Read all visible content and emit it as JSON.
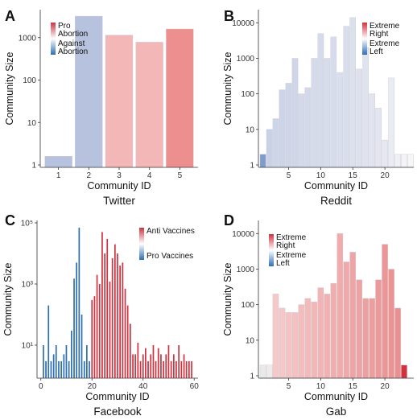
{
  "figure": {
    "colors": {
      "blue": "#2d6fb3",
      "red": "#d0323f",
      "light_blue": "#b7c3de",
      "light_red": "#f4b7b7",
      "mid_red": "#ee9c9c",
      "axis": "#333333",
      "text": "#111111"
    }
  },
  "chart_data": [
    {
      "panel": "A",
      "type": "bar",
      "subtitle": "Twitter",
      "xlabel": "Community ID",
      "ylabel": "Community Size",
      "yscale": "log10",
      "ylim": [
        1,
        4000
      ],
      "yticks": [
        1,
        10,
        100,
        1000
      ],
      "yticklabels": [
        "1",
        "10",
        "100",
        "1000"
      ],
      "xticks": [
        1,
        2,
        3,
        4,
        5
      ],
      "xticklabels": [
        "1",
        "2",
        "3",
        "4",
        "5"
      ],
      "legend": {
        "position": "top-left",
        "gradient": [
          "#d0323f",
          "#ffffff",
          "#2d6fb3"
        ],
        "top_label": "Pro\nAbortion",
        "bottom_label": "Against\nAbortion"
      },
      "bars": [
        {
          "x": 1,
          "value": 1.6,
          "color": "#b7c3de"
        },
        {
          "x": 2,
          "value": 3200,
          "color": "#b7c3de"
        },
        {
          "x": 3,
          "value": 1150,
          "color": "#f4b7b7"
        },
        {
          "x": 4,
          "value": 780,
          "color": "#f4b7b7"
        },
        {
          "x": 5,
          "value": 1600,
          "color": "#ee8f8f"
        }
      ]
    },
    {
      "panel": "B",
      "type": "bar",
      "subtitle": "Reddit",
      "xlabel": "Community ID",
      "ylabel": "Community Size",
      "yscale": "log10",
      "ylim": [
        1,
        20000
      ],
      "yticks": [
        1,
        10,
        100,
        1000,
        10000
      ],
      "yticklabels": [
        "1",
        "10",
        "100",
        "1000",
        "10000"
      ],
      "xticks": [
        5,
        10,
        15,
        20
      ],
      "xticklabels": [
        "5",
        "10",
        "15",
        "20"
      ],
      "xlim": [
        0.3,
        24.5
      ],
      "legend": {
        "position": "top-right",
        "gradient": [
          "#d0323f",
          "#ffffff",
          "#2d6fb3"
        ],
        "top_label": "Extreme\nRight",
        "bottom_label": "Extreme\nLeft"
      },
      "bars": [
        {
          "x": 1,
          "value": 2,
          "color": "#7f9ccb"
        },
        {
          "x": 2,
          "value": 10,
          "color": "#c8d1e6"
        },
        {
          "x": 3,
          "value": 20,
          "color": "#cdd5e8"
        },
        {
          "x": 4,
          "value": 130,
          "color": "#ccd4e7"
        },
        {
          "x": 5,
          "value": 200,
          "color": "#cdd5e8"
        },
        {
          "x": 6,
          "value": 1000,
          "color": "#cfd6e8"
        },
        {
          "x": 7,
          "value": 100,
          "color": "#d3d9ea"
        },
        {
          "x": 8,
          "value": 150,
          "color": "#d3d9ea"
        },
        {
          "x": 9,
          "value": 1000,
          "color": "#d5dbeb"
        },
        {
          "x": 10,
          "value": 5000,
          "color": "#d5dbeb"
        },
        {
          "x": 11,
          "value": 1000,
          "color": "#d7dcec"
        },
        {
          "x": 12,
          "value": 4000,
          "color": "#d7dcec"
        },
        {
          "x": 13,
          "value": 400,
          "color": "#d9deec"
        },
        {
          "x": 14,
          "value": 8000,
          "color": "#d9deec"
        },
        {
          "x": 15,
          "value": 14000,
          "color": "#dbe0ed"
        },
        {
          "x": 16,
          "value": 500,
          "color": "#dde1ee"
        },
        {
          "x": 17,
          "value": 2000,
          "color": "#dfe3ef"
        },
        {
          "x": 18,
          "value": 100,
          "color": "#e1e4ef"
        },
        {
          "x": 19,
          "value": 40,
          "color": "#e3e6f0"
        },
        {
          "x": 20,
          "value": 5,
          "color": "#e6e8f1"
        },
        {
          "x": 21,
          "value": 280,
          "color": "#eaecf3"
        },
        {
          "x": 22,
          "value": 2,
          "color": "#eff0f5"
        },
        {
          "x": 23,
          "value": 2,
          "color": "#f4f4f6"
        },
        {
          "x": 24,
          "value": 2,
          "color": "#f6f6f7"
        }
      ]
    },
    {
      "panel": "C",
      "type": "bar",
      "subtitle": "Facebook",
      "xlabel": "Community ID",
      "ylabel": "Community Size",
      "yscale": "log10",
      "ylim": [
        1,
        100000
      ],
      "yticks": [
        10,
        1000,
        100000
      ],
      "yticklabels": [
        "10¹",
        "10³",
        "10⁵"
      ],
      "xticks": [
        0,
        20,
        40,
        60
      ],
      "xticklabels": [
        "0",
        "20",
        "40",
        "60"
      ],
      "xlim": [
        -1.5,
        61.5
      ],
      "legend": {
        "position": "top-right",
        "gradient": [
          "#d0323f",
          "#ffffff",
          "#2d6fb3"
        ],
        "top_label": "Anti Vaccines",
        "bottom_label": "Pro Vaccines"
      },
      "series": [
        {
          "name": "Pro Vaccines",
          "color": "#2d6fb3",
          "x": [
            1,
            2,
            3,
            4,
            5,
            6,
            7,
            8,
            9,
            10,
            11,
            12,
            13,
            14,
            15,
            16,
            17,
            18,
            19
          ],
          "values": [
            10,
            3,
            200,
            3,
            5,
            10,
            3,
            3,
            5,
            10,
            3,
            30,
            1500,
            5000,
            70000,
            100,
            3,
            10,
            3
          ]
        },
        {
          "name": "Anti Vaccines",
          "color": "#d0323f",
          "x": [
            20,
            21,
            22,
            23,
            24,
            25,
            26,
            27,
            28,
            29,
            30,
            31,
            32,
            33,
            34,
            35,
            36,
            37,
            38,
            39,
            40,
            41,
            42,
            43,
            44,
            45,
            46,
            47,
            48,
            49,
            50,
            51,
            52,
            53,
            54,
            55,
            56,
            57,
            58,
            59
          ],
          "values": [
            300,
            400,
            2000,
            1000,
            50000,
            10000,
            30000,
            1200,
            7000,
            20000,
            10000,
            4000,
            5000,
            700,
            200,
            50,
            5,
            5,
            12,
            3,
            5,
            8,
            3,
            5,
            10,
            3,
            8,
            5,
            3,
            5,
            10,
            3,
            5,
            3,
            10,
            3,
            5,
            3,
            3,
            3
          ]
        }
      ]
    },
    {
      "panel": "D",
      "type": "bar",
      "subtitle": "Gab",
      "xlabel": "Community ID",
      "ylabel": "Community Size",
      "yscale": "log10",
      "ylim": [
        1,
        20000
      ],
      "yticks": [
        1,
        10,
        100,
        1000,
        10000
      ],
      "yticklabels": [
        "1",
        "10",
        "100",
        "1000",
        "10000"
      ],
      "xticks": [
        5,
        10,
        15,
        20
      ],
      "xticklabels": [
        "5",
        "10",
        "15",
        "20"
      ],
      "xlim": [
        0.3,
        24.5
      ],
      "legend": {
        "position": "top-left",
        "gradient": [
          "#d0323f",
          "#ffffff",
          "#2d6fb3"
        ],
        "top_label": "Extreme\nRight",
        "bottom_label": "Extreme\nLeft"
      },
      "bars": [
        {
          "x": 1,
          "value": 2,
          "color": "#e9e9ea"
        },
        {
          "x": 2,
          "value": 2,
          "color": "#f0e9ea"
        },
        {
          "x": 3,
          "value": 200,
          "color": "#f6c9c9"
        },
        {
          "x": 4,
          "value": 80,
          "color": "#f6c7c7"
        },
        {
          "x": 5,
          "value": 60,
          "color": "#f5c3c3"
        },
        {
          "x": 6,
          "value": 60,
          "color": "#f5c0c0"
        },
        {
          "x": 7,
          "value": 100,
          "color": "#f4bdbd"
        },
        {
          "x": 8,
          "value": 150,
          "color": "#f3baba"
        },
        {
          "x": 9,
          "value": 120,
          "color": "#f3b7b7"
        },
        {
          "x": 10,
          "value": 300,
          "color": "#f2b4b4"
        },
        {
          "x": 11,
          "value": 200,
          "color": "#f2b1b1"
        },
        {
          "x": 12,
          "value": 400,
          "color": "#f1aeae"
        },
        {
          "x": 13,
          "value": 10000,
          "color": "#f1abab"
        },
        {
          "x": 14,
          "value": 1600,
          "color": "#f0a8a8"
        },
        {
          "x": 15,
          "value": 3000,
          "color": "#efa5a5"
        },
        {
          "x": 16,
          "value": 500,
          "color": "#efa2a2"
        },
        {
          "x": 17,
          "value": 150,
          "color": "#ee9f9f"
        },
        {
          "x": 18,
          "value": 150,
          "color": "#ee9c9c"
        },
        {
          "x": 19,
          "value": 500,
          "color": "#ed9999"
        },
        {
          "x": 20,
          "value": 5000,
          "color": "#ec9696"
        },
        {
          "x": 21,
          "value": 1000,
          "color": "#ec9393"
        },
        {
          "x": 22,
          "value": 80,
          "color": "#eb9090"
        },
        {
          "x": 23,
          "value": 2,
          "color": "#d0323f"
        }
      ]
    }
  ]
}
